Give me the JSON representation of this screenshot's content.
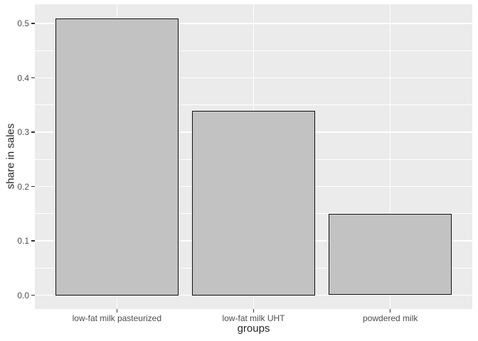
{
  "chart_data": {
    "type": "bar",
    "categories": [
      "low-fat milk pasteurized",
      "low-fat milk UHT",
      "powdered milk"
    ],
    "values": [
      0.51,
      0.34,
      0.15
    ],
    "title": "",
    "xlabel": "groups",
    "ylabel": "share in sales",
    "ylim": [
      -0.0255,
      0.5355
    ],
    "yticks": [
      0.0,
      0.1,
      0.2,
      0.3,
      0.4,
      0.5
    ],
    "ytick_labels": [
      "0.0",
      "0.1",
      "0.2",
      "0.3",
      "0.4",
      "0.5"
    ],
    "minor_yticks": [
      0.05,
      0.15,
      0.25,
      0.35,
      0.45
    ],
    "grid": true,
    "legend": false,
    "bar_width_fraction": 0.9,
    "colors": {
      "page_background": "#FFFFFF",
      "panel_background": "#EBEBEB",
      "bar_fill": "#C2C2C2",
      "bar_border": "#111111",
      "gridline": "#FFFFFF",
      "tick_mark": "#333333",
      "tick_text": "#4D4D4D",
      "axis_title_text": "#262626"
    }
  }
}
